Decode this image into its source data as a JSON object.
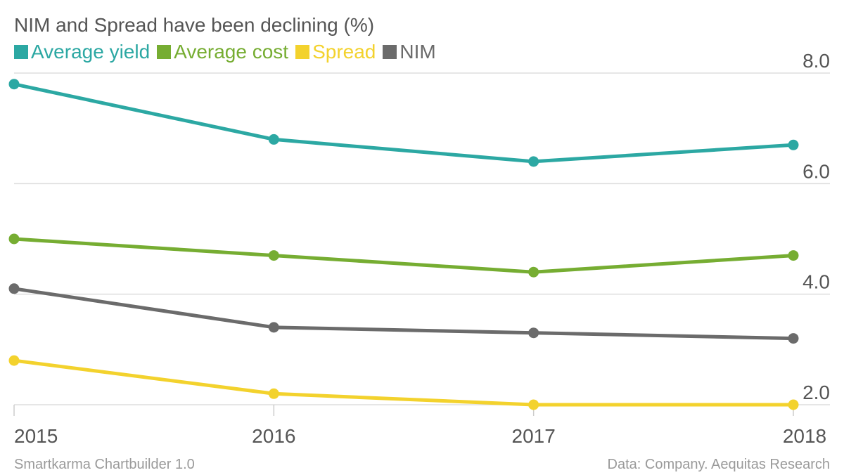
{
  "chart_data": {
    "type": "line",
    "title": "NIM and Spread have been declining (%)",
    "x": [
      "2015",
      "2016",
      "2017",
      "2018"
    ],
    "yticks": [
      "2.0",
      "4.0",
      "6.0",
      "8.0"
    ],
    "ytick_values": [
      2,
      4,
      6,
      8
    ],
    "ylim": [
      2,
      8
    ],
    "grid": true,
    "legend_position": "top-left",
    "series": [
      {
        "name": "Average yield",
        "color": "#2ca8a3",
        "values": [
          7.8,
          6.8,
          6.4,
          6.7
        ]
      },
      {
        "name": "Average cost",
        "color": "#76ad32",
        "values": [
          5.0,
          4.7,
          4.4,
          4.7
        ]
      },
      {
        "name": "Spread",
        "color": "#f3d22d",
        "values": [
          2.8,
          2.2,
          2.0,
          2.0
        ]
      },
      {
        "name": "NIM",
        "color": "#6b6b6b",
        "values": [
          4.1,
          3.4,
          3.3,
          3.2
        ]
      }
    ]
  },
  "footer": {
    "left": "Smartkarma Chartbuilder 1.0",
    "right": "Data: Company. Aequitas Research"
  }
}
